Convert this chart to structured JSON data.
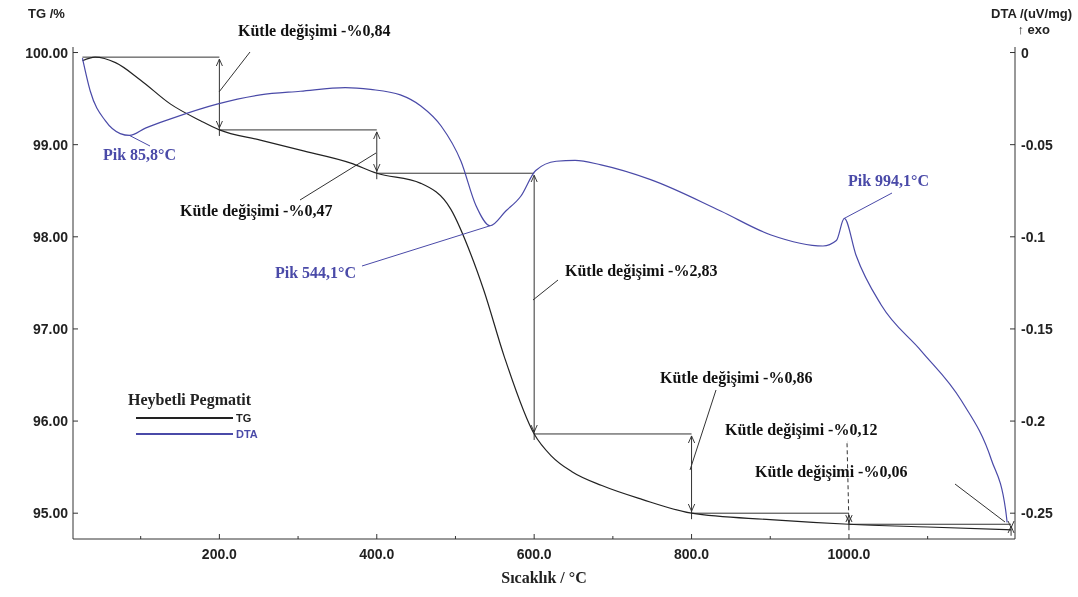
{
  "chart_data": {
    "type": "line",
    "xlabel": "Sıcaklık / °C",
    "ylabel": "TG /%",
    "y2label": "DTA /(uV/mg)\n↑ exo",
    "legend_title": "Heybetli Pegmatit",
    "xlim": [
      14,
      1211
    ],
    "ylim": [
      94.72,
      100.06
    ],
    "y2lim": [
      -0.264,
      0.003
    ],
    "xticks": [
      {
        "value": 100,
        "label": null
      },
      {
        "value": 200,
        "label": "200.0"
      },
      {
        "value": 300,
        "label": null
      },
      {
        "value": 400,
        "label": "400.0"
      },
      {
        "value": 500,
        "label": null
      },
      {
        "value": 600,
        "label": "600.0"
      },
      {
        "value": 700,
        "label": null
      },
      {
        "value": 800,
        "label": "800.0"
      },
      {
        "value": 900,
        "label": null
      },
      {
        "value": 1000,
        "label": "1000.0"
      },
      {
        "value": 1100,
        "label": null
      }
    ],
    "yticks": [
      {
        "value": 95,
        "label": "95.00"
      },
      {
        "value": 96,
        "label": "96.00"
      },
      {
        "value": 97,
        "label": "97.00"
      },
      {
        "value": 98,
        "label": "98.00"
      },
      {
        "value": 99,
        "label": "99.00"
      },
      {
        "value": 100,
        "label": "100.00"
      }
    ],
    "y2ticks": [
      -0.25,
      -0.2,
      -0.15,
      -0.1,
      -0.05,
      0
    ],
    "legend": "left",
    "grid": false,
    "marker": "none",
    "line_style": "solid",
    "series": [
      {
        "name": "TG",
        "color": "#222222",
        "x": [
          26,
          42,
          68,
          100,
          138,
          176,
          200,
          252,
          303,
          367,
          400,
          456,
          494,
          520,
          536,
          562,
          600,
          622,
          648,
          686,
          737,
          800,
          900,
          1000,
          1100,
          1206
        ],
        "values": [
          99.91,
          99.95,
          99.89,
          99.7,
          99.44,
          99.26,
          99.16,
          99.05,
          98.94,
          98.8,
          98.69,
          98.58,
          98.3,
          97.8,
          97.42,
          96.7,
          95.86,
          95.62,
          95.45,
          95.3,
          95.15,
          95.0,
          94.93,
          94.88,
          94.85,
          94.82
        ]
      },
      {
        "name": "DTA",
        "color": "#4a4aa8",
        "axis": "y2",
        "x": [
          26,
          36,
          55,
          74,
          85.8,
          106,
          138,
          197,
          252,
          303,
          360,
          392,
          430,
          456,
          482,
          507,
          526,
          544.1,
          564,
          583,
          602,
          628,
          652,
          685,
          748,
          837,
          901,
          967,
          984,
          994.1,
          1009,
          1041,
          1092,
          1143,
          1181,
          1199,
          1201
        ],
        "values": [
          -0.003,
          -0.021,
          -0.037,
          -0.044,
          -0.045,
          -0.041,
          -0.036,
          -0.028,
          -0.023,
          -0.021,
          -0.019,
          -0.02,
          -0.023,
          -0.029,
          -0.04,
          -0.059,
          -0.083,
          -0.094,
          -0.086,
          -0.078,
          -0.064,
          -0.059,
          -0.0585,
          -0.061,
          -0.069,
          -0.086,
          -0.099,
          -0.105,
          -0.102,
          -0.09,
          -0.11,
          -0.137,
          -0.162,
          -0.189,
          -0.221,
          -0.248,
          -0.255
        ]
      }
    ],
    "annotations": [
      "Kütle değişimi -%0,84",
      "Kütle değişimi -%0,47",
      {
        "text": "Pik 85,8°C",
        "x": 85.8,
        "y": 99.1
      },
      {
        "text": "Pik 544,1°C",
        "x": 544.1,
        "y": 98.12
      },
      "Kütle değişimi -%2,83",
      {
        "text": "Pik 994,1°C",
        "x": 994.1,
        "y": 98.2
      },
      "Kütle değişimi -%0,86",
      {
        "text": "Kütle değişimi -%0,12",
        "x": 1000,
        "y": 94.88
      },
      "Kütle değişimi -%0,06"
    ]
  }
}
